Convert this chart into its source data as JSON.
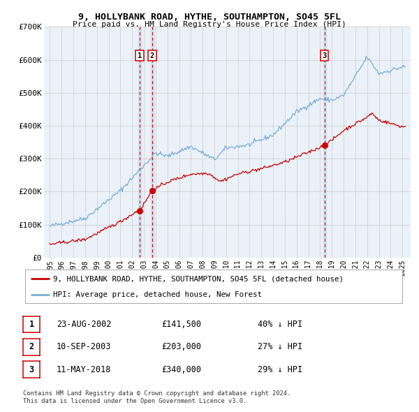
{
  "title": "9, HOLLYBANK ROAD, HYTHE, SOUTHAMPTON, SO45 5FL",
  "subtitle": "Price paid vs. HM Land Registry's House Price Index (HPI)",
  "legend_red": "9, HOLLYBANK ROAD, HYTHE, SOUTHAMPTON, SO45 5FL (detached house)",
  "legend_blue": "HPI: Average price, detached house, New Forest",
  "footer1": "Contains HM Land Registry data © Crown copyright and database right 2024.",
  "footer2": "This data is licensed under the Open Government Licence v3.0.",
  "transactions": [
    {
      "num": 1,
      "date": "23-AUG-2002",
      "price": 141500,
      "pct": "40%",
      "x_year": 2002.64
    },
    {
      "num": 2,
      "date": "10-SEP-2003",
      "price": 203000,
      "pct": "27%",
      "x_year": 2003.7
    },
    {
      "num": 3,
      "date": "11-MAY-2018",
      "price": 340000,
      "pct": "29%",
      "x_year": 2018.37
    }
  ],
  "background_color": "#ffffff",
  "plot_bg_color": "#eaf1f8",
  "highlight_bg_color": "#d0e2f0",
  "red_color": "#cc0000",
  "blue_color": "#7aadd4",
  "dashed_color": "#cc0000",
  "grid_color": "#cccccc",
  "ylim": [
    0,
    700000
  ],
  "xlim_start": 1994.5,
  "xlim_end": 2025.7,
  "ytick_labels": [
    "£0",
    "£100K",
    "£200K",
    "£300K",
    "£400K",
    "£500K",
    "£600K",
    "£700K"
  ],
  "ytick_values": [
    0,
    100000,
    200000,
    300000,
    400000,
    500000,
    600000,
    700000
  ]
}
